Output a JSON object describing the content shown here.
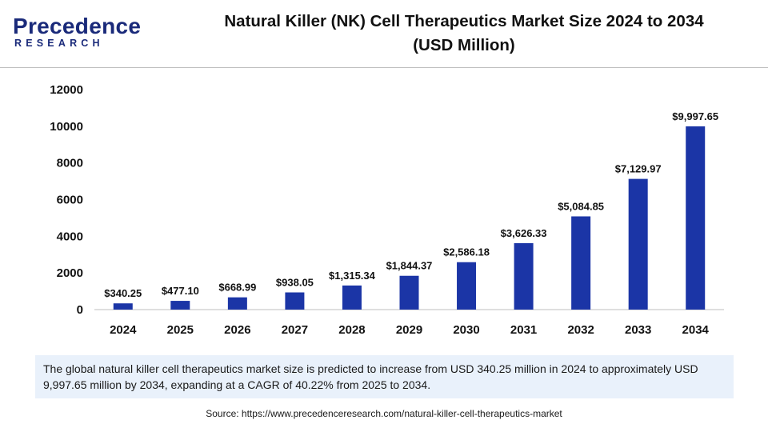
{
  "header": {
    "logo_word": "Precedence",
    "logo_sub": "RESEARCH",
    "title_line1": "Natural Killer (NK) Cell Therapeutics Market Size 2024 to 2034",
    "title_line2": "(USD Million)"
  },
  "colors": {
    "bar": "#1b35a6",
    "logo": "#1a2a7a",
    "caption_bg": "#e9f1fb"
  },
  "chart_data": {
    "type": "bar",
    "title": "Natural Killer (NK) Cell Therapeutics Market Size 2024 to 2034 (USD Million)",
    "xlabel": "",
    "ylabel": "",
    "categories": [
      "2024",
      "2025",
      "2026",
      "2027",
      "2028",
      "2029",
      "2030",
      "2031",
      "2032",
      "2033",
      "2034"
    ],
    "values": [
      340.25,
      477.1,
      668.99,
      938.05,
      1315.34,
      1844.37,
      2586.18,
      3626.33,
      5084.85,
      7129.97,
      9997.65
    ],
    "data_labels": [
      "$340.25",
      "$477.10",
      "$668.99",
      "$938.05",
      "$1,315.34",
      "$1,844.37",
      "$2,586.18",
      "$3,626.33",
      "$5,084.85",
      "$7,129.97",
      "$9,997.65"
    ],
    "ylim": [
      0,
      12000
    ],
    "yticks": [
      0,
      2000,
      4000,
      6000,
      8000,
      10000,
      12000
    ],
    "ytick_labels": [
      "0",
      "2000",
      "4000",
      "6000",
      "8000",
      "10000",
      "12000"
    ],
    "grid": false,
    "legend": "none"
  },
  "caption": "The global natural killer cell therapeutics market size is predicted to increase from USD 340.25 million in 2024 to approximately USD 9,997.65 million by 2034, expanding at a CAGR of 40.22% from 2025 to 2034.",
  "source": "Source: https://www.precedenceresearch.com/natural-killer-cell-therapeutics-market"
}
